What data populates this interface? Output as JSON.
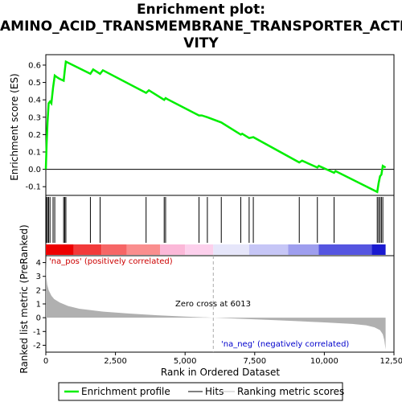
{
  "chart_data": {
    "type": "line",
    "title_line1": "Enrichment plot:",
    "title_line2": "AMINO_ACID_TRANSMEMBRANE_TRANSPORTER_ACTI",
    "title_line3": "VITY",
    "es_ylabel": "Enrichment score (ES)",
    "es_ylim": [
      -0.15,
      0.66
    ],
    "es_yticks": [
      -0.1,
      0.0,
      0.1,
      0.2,
      0.3,
      0.4,
      0.5,
      0.6
    ],
    "es_ytick_labels": [
      "-0.1",
      "0.0",
      "0.1",
      "0.2",
      "0.3",
      "0.4",
      "0.5",
      "0.6"
    ],
    "xlim": [
      0,
      12500
    ],
    "xticks": [
      0,
      2500,
      5000,
      7500,
      10000,
      12500
    ],
    "xtick_labels": [
      "0",
      "2,500",
      "5,000",
      "7,500",
      "10,000",
      "12,500"
    ],
    "xlabel": "Rank in Ordered Dataset",
    "rank_ylabel": "Ranked list metric (PreRanked)",
    "rank_ylim": [
      -2.5,
      4.5
    ],
    "rank_yticks": [
      -2,
      -1,
      0,
      1,
      2,
      3,
      4
    ],
    "rank_ytick_labels": [
      "-2",
      "-1",
      "0",
      "1",
      "2",
      "3",
      "4"
    ],
    "es_profile": {
      "x": [
        0,
        30,
        60,
        100,
        150,
        200,
        260,
        320,
        400,
        500,
        640,
        680,
        720,
        1600,
        1700,
        1950,
        2050,
        3600,
        3700,
        4250,
        4300,
        4350,
        5500,
        5600,
        5800,
        6300,
        7000,
        7050,
        7300,
        7450,
        9100,
        9200,
        9750,
        9800,
        10350,
        10400,
        11900,
        11950,
        12000,
        12050,
        12100,
        12200
      ],
      "y": [
        0.0,
        0.15,
        0.27,
        0.38,
        0.39,
        0.38,
        0.47,
        0.54,
        0.53,
        0.52,
        0.51,
        0.57,
        0.62,
        0.55,
        0.575,
        0.55,
        0.57,
        0.44,
        0.455,
        0.4,
        0.41,
        0.405,
        0.31,
        0.31,
        0.3,
        0.27,
        0.2,
        0.205,
        0.18,
        0.185,
        0.04,
        0.05,
        0.01,
        0.02,
        -0.02,
        -0.01,
        -0.13,
        -0.08,
        -0.04,
        -0.03,
        0.02,
        0.01
      ]
    },
    "hits": [
      20,
      60,
      100,
      150,
      260,
      320,
      640,
      680,
      720,
      1600,
      1950,
      3600,
      4250,
      4300,
      5500,
      5800,
      6300,
      7000,
      7300,
      7450,
      9100,
      9750,
      10350,
      11900,
      11950,
      12000,
      12050,
      12100
    ],
    "metric_curve": {
      "x": [
        0,
        20,
        50,
        100,
        200,
        300,
        500,
        800,
        1200,
        2000,
        3000,
        4000,
        5000,
        6013,
        7000,
        8000,
        9000,
        10000,
        11000,
        11500,
        11800,
        12000,
        12100,
        12150,
        12200
      ],
      "y": [
        4.5,
        2.9,
        2.4,
        2.0,
        1.6,
        1.35,
        1.1,
        0.85,
        0.65,
        0.45,
        0.3,
        0.18,
        0.08,
        0.0,
        -0.08,
        -0.16,
        -0.25,
        -0.34,
        -0.45,
        -0.55,
        -0.7,
        -0.9,
        -1.2,
        -1.6,
        -2.3
      ]
    },
    "zero_cross_label": "Zero cross at 6013",
    "zero_cross_x": 6013,
    "pos_label": "'na_pos' (positively correlated)",
    "neg_label": "'na_neg' (negatively correlated)",
    "heat_segments": [
      {
        "x0": 0,
        "x1": 1000,
        "color": "#ee0000"
      },
      {
        "x0": 1000,
        "x1": 2000,
        "color": "#f23a3a"
      },
      {
        "x0": 2000,
        "x1": 2900,
        "color": "#f66666"
      },
      {
        "x0": 2900,
        "x1": 4100,
        "color": "#fa8e8e"
      },
      {
        "x0": 4100,
        "x1": 5000,
        "color": "#fbb8d8"
      },
      {
        "x0": 5000,
        "x1": 6013,
        "color": "#fcd0ec"
      },
      {
        "x0": 6013,
        "x1": 7300,
        "color": "#e6e6fa"
      },
      {
        "x0": 7300,
        "x1": 8700,
        "color": "#c6c6f6"
      },
      {
        "x0": 8700,
        "x1": 9800,
        "color": "#9e9eee"
      },
      {
        "x0": 9800,
        "x1": 11700,
        "color": "#5555e0"
      },
      {
        "x0": 11700,
        "x1": 12200,
        "color": "#1a1ad0"
      }
    ],
    "legend": [
      {
        "label": "Enrichment profile",
        "color": "#00ee00"
      },
      {
        "label": "Hits",
        "color": "#000000"
      },
      {
        "label": "Ranking metric scores",
        "color": "#c0c0c0"
      }
    ],
    "colors": {
      "profile": "#00ee00",
      "hits": "#000000",
      "metric_fill": "#b0b0b0",
      "pos_text": "#cc0000",
      "neg_text": "#0000cc"
    }
  }
}
